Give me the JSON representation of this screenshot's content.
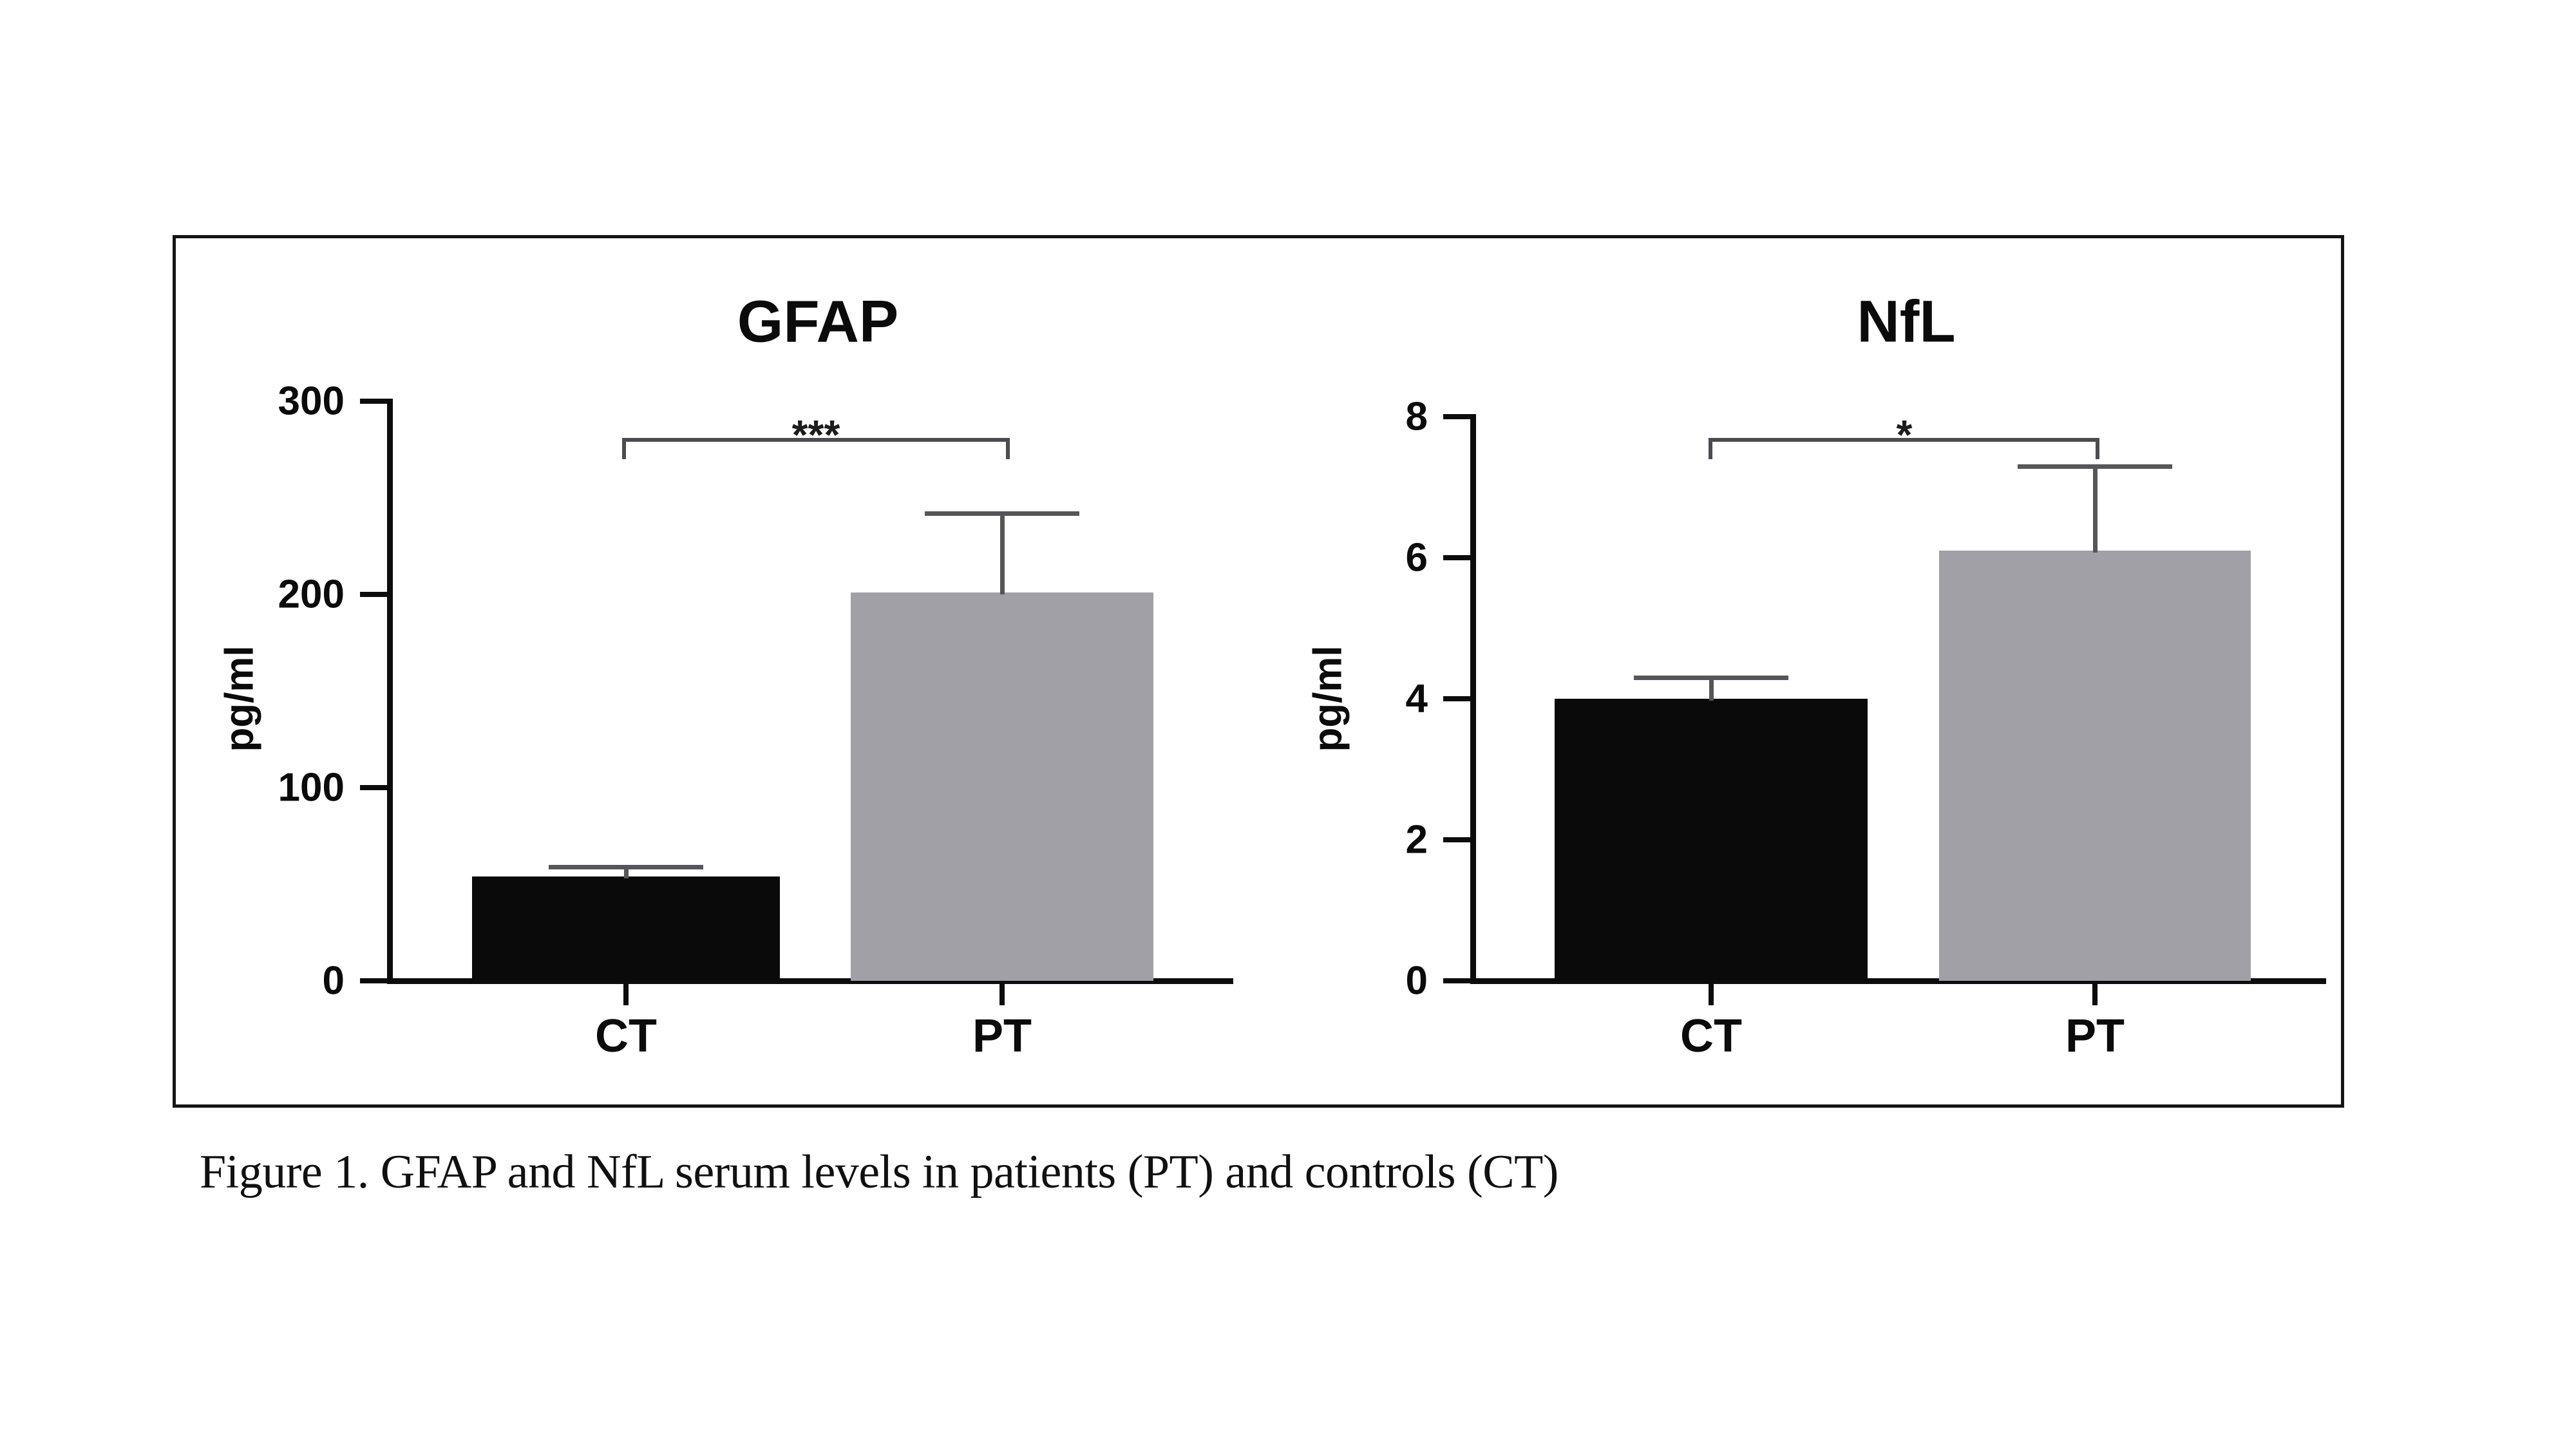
{
  "figure": {
    "caption": "Figure 1. GFAP and NfL serum levels in patients (PT) and controls (CT)"
  },
  "chart_data": [
    {
      "type": "bar",
      "title": "GFAP",
      "ylabel": "pg/ml",
      "categories": [
        "CT",
        "PT"
      ],
      "values": [
        54,
        201
      ],
      "error_top": [
        59,
        242
      ],
      "yticks": [
        0,
        100,
        200,
        300
      ],
      "ylim": [
        0,
        300
      ],
      "bar_colors": [
        "#0a0a0a",
        "#a1a0a6"
      ],
      "axis_color": "#0c0c0c",
      "error_color": "#56565a",
      "bracket_color": "#4b4b50",
      "significance": {
        "label": "***",
        "between": [
          "CT",
          "PT"
        ]
      },
      "grid": false,
      "legend": null
    },
    {
      "type": "bar",
      "title": "NfL",
      "ylabel": "pg/ml",
      "categories": [
        "CT",
        "PT"
      ],
      "values": [
        4.0,
        6.1
      ],
      "error_top": [
        4.3,
        7.3
      ],
      "yticks": [
        0,
        2,
        4,
        6,
        8
      ],
      "ylim": [
        0,
        8
      ],
      "bar_colors": [
        "#0a0a0a",
        "#a1a0a6"
      ],
      "axis_color": "#0c0c0c",
      "error_color": "#56565a",
      "bracket_color": "#4b4b50",
      "significance": {
        "label": "*",
        "between": [
          "CT",
          "PT"
        ]
      },
      "grid": false,
      "legend": null
    }
  ]
}
